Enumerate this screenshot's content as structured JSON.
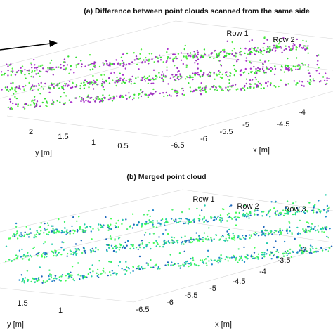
{
  "panel_a": {
    "title": "(a) Difference between point clouds scanned from the same side",
    "rows": [
      "Row 1",
      "Row 2"
    ],
    "y_axis": {
      "label": "y [m]",
      "ticks": [
        "2",
        "1.5",
        "1",
        "0.5"
      ]
    },
    "x_axis": {
      "label": "x [m]",
      "ticks": [
        "-6.5",
        "-6",
        "-5.5",
        "-5",
        "-4.5",
        "-4"
      ]
    }
  },
  "panel_b": {
    "title": "(b) Merged point cloud",
    "rows": [
      "Row 1",
      "Row 2",
      "Row 3"
    ],
    "y_axis": {
      "label": "y [m]",
      "ticks": [
        "1.5",
        "1"
      ]
    },
    "x_axis": {
      "label": "x [m]",
      "ticks": [
        "-6.5",
        "-6",
        "-5.5",
        "-5",
        "-4.5",
        "-4",
        "-3.5",
        "-3"
      ]
    }
  }
}
